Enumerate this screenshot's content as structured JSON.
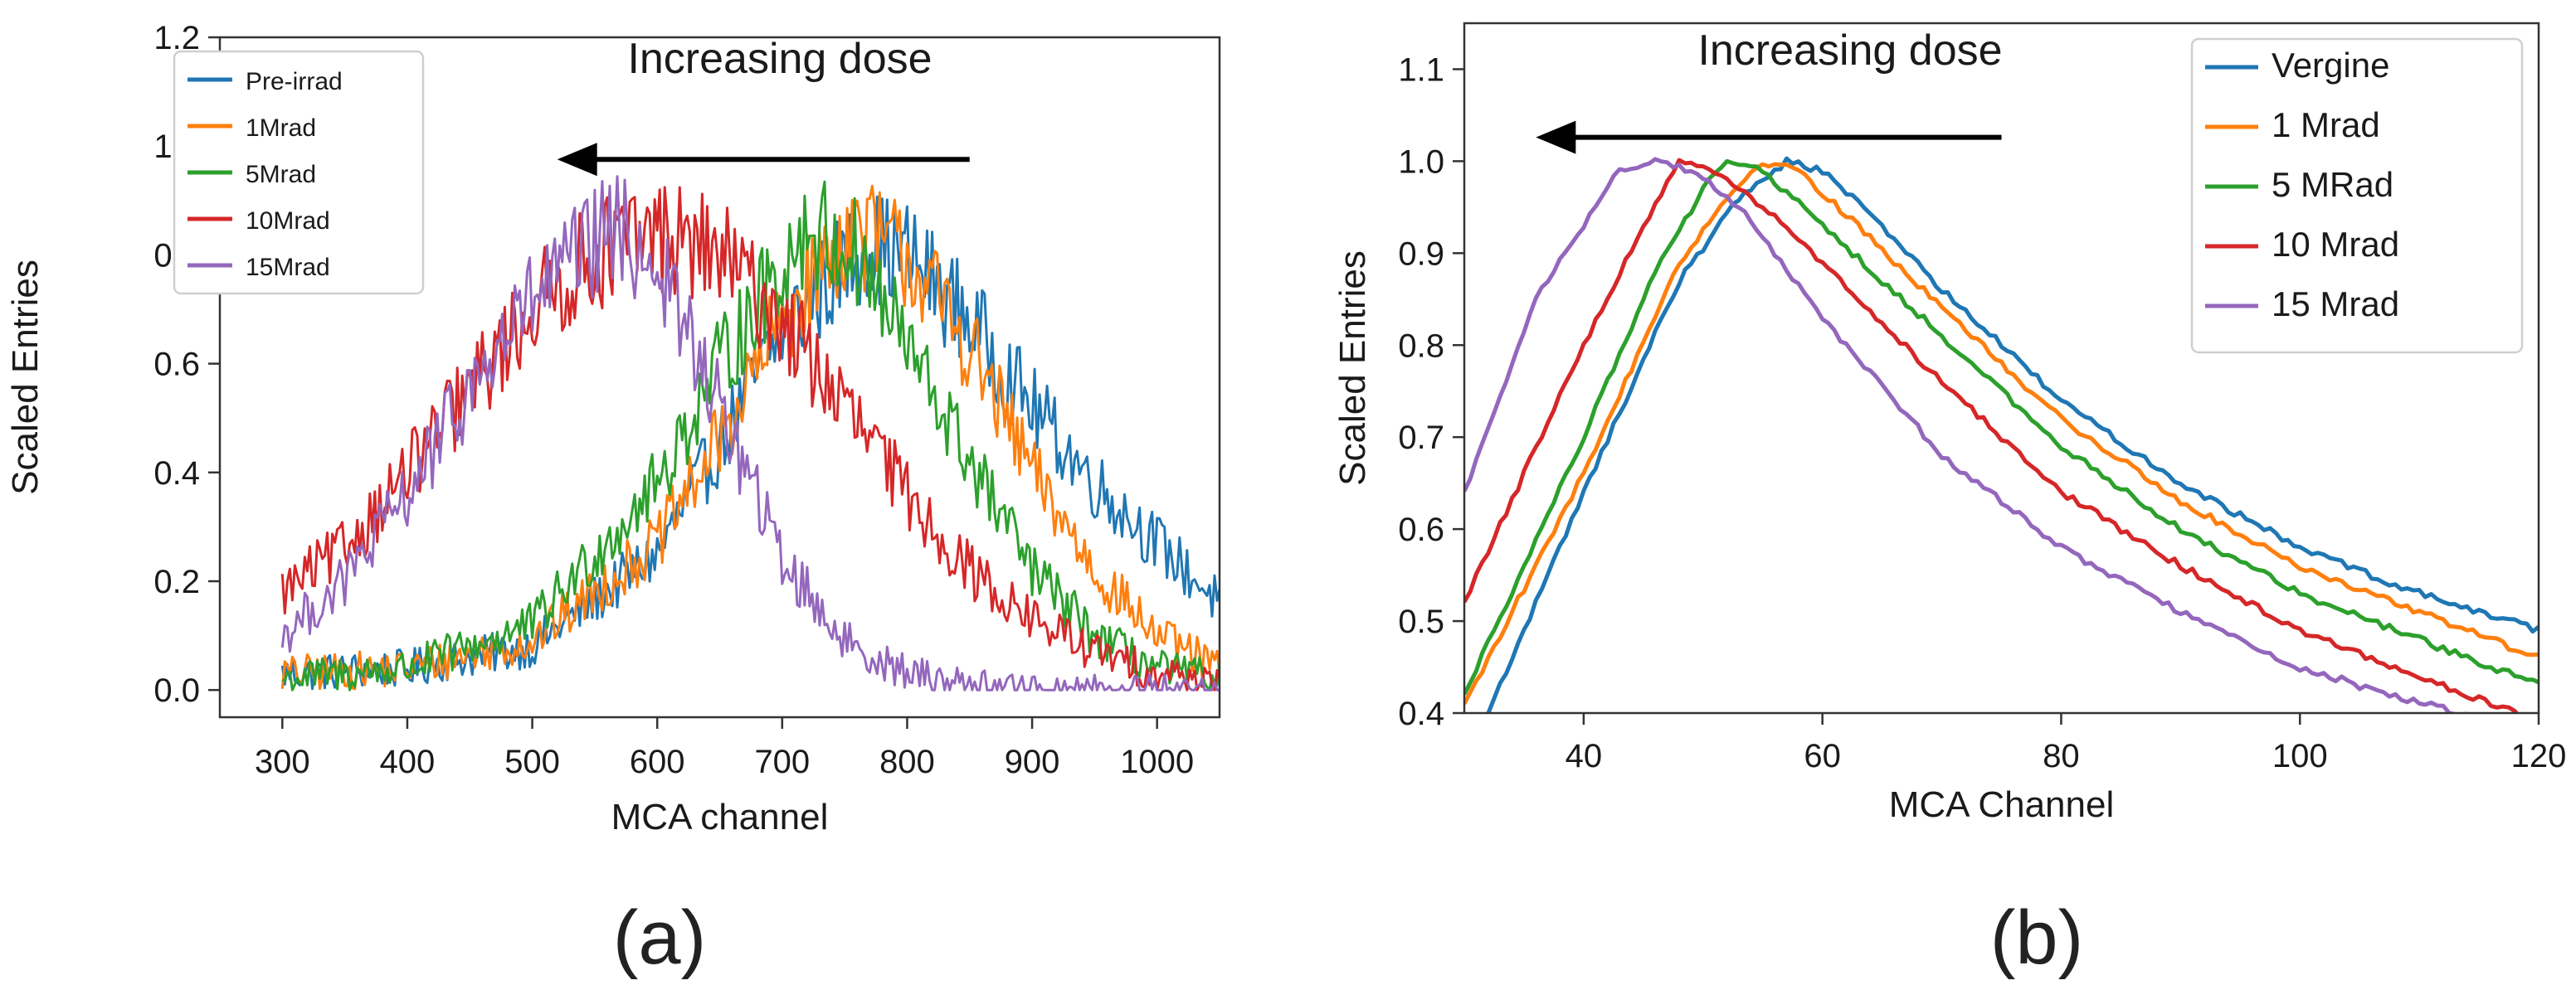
{
  "figure": {
    "panel_labels": [
      "(a)",
      "(b)"
    ]
  },
  "chart_data": [
    {
      "type": "line",
      "panel": "(a)",
      "xlabel": "MCA channel",
      "ylabel": "Scaled Entries",
      "xlim": [
        250,
        1050
      ],
      "ylim": [
        -0.05,
        1.2
      ],
      "xticks": [
        300,
        400,
        500,
        600,
        700,
        800,
        900,
        1000
      ],
      "yticks": [
        0.0,
        0.2,
        0.4,
        0.6,
        0.8,
        1.0,
        1.2
      ],
      "ytick_labels": [
        "0.0",
        "0.2",
        "0.4",
        "0.6",
        "0.8",
        "1.0",
        "1.2"
      ],
      "grid": false,
      "legend_position": "top-left",
      "annotation": {
        "text": "Increasing dose",
        "arrow_from_x": 850,
        "arrow_to_x": 520,
        "y": 1.07
      },
      "noisy": true,
      "x_range": [
        300,
        1050
      ],
      "series": [
        {
          "name": "Pre-irrad",
          "color": "#1f77b4",
          "peak_x": 765,
          "sigma_left": 130,
          "sigma_right": 210,
          "baseline": 0.03,
          "noise": 0.09,
          "points": [
            [
              300,
              0.03
            ],
            [
              400,
              0.04
            ],
            [
              500,
              0.08
            ],
            [
              600,
              0.25
            ],
            [
              650,
              0.45
            ],
            [
              700,
              0.66
            ],
            [
              765,
              0.82
            ],
            [
              800,
              0.8
            ],
            [
              850,
              0.68
            ],
            [
              900,
              0.52
            ],
            [
              950,
              0.38
            ],
            [
              1000,
              0.27
            ],
            [
              1050,
              0.16
            ]
          ]
        },
        {
          "name": "1Mrad",
          "color": "#ff7f0e",
          "peak_x": 755,
          "sigma_left": 125,
          "sigma_right": 150,
          "baseline": 0.03,
          "noise": 0.09,
          "points": [
            [
              300,
              0.03
            ],
            [
              400,
              0.04
            ],
            [
              500,
              0.09
            ],
            [
              600,
              0.27
            ],
            [
              650,
              0.46
            ],
            [
              700,
              0.68
            ],
            [
              755,
              0.85
            ],
            [
              800,
              0.8
            ],
            [
              850,
              0.63
            ],
            [
              900,
              0.4
            ],
            [
              950,
              0.22
            ],
            [
              1000,
              0.1
            ],
            [
              1050,
              0.04
            ]
          ]
        },
        {
          "name": "5Mrad",
          "color": "#2ca02c",
          "peak_x": 720,
          "sigma_left": 125,
          "sigma_right": 130,
          "baseline": 0.02,
          "noise": 0.09,
          "points": [
            [
              300,
              0.02
            ],
            [
              400,
              0.04
            ],
            [
              500,
              0.12
            ],
            [
              600,
              0.38
            ],
            [
              650,
              0.6
            ],
            [
              720,
              0.85
            ],
            [
              760,
              0.8
            ],
            [
              800,
              0.63
            ],
            [
              850,
              0.42
            ],
            [
              900,
              0.22
            ],
            [
              950,
              0.1
            ],
            [
              1000,
              0.04
            ],
            [
              1050,
              0.02
            ]
          ]
        },
        {
          "name": "10Mrad",
          "color": "#d62728",
          "peak_x": 600,
          "sigma_left": 180,
          "sigma_right": 170,
          "baseline": 0.0,
          "noise": 0.09,
          "points": [
            [
              300,
              0.18
            ],
            [
              350,
              0.26
            ],
            [
              400,
              0.4
            ],
            [
              450,
              0.55
            ],
            [
              500,
              0.7
            ],
            [
              550,
              0.8
            ],
            [
              600,
              0.84
            ],
            [
              650,
              0.8
            ],
            [
              700,
              0.68
            ],
            [
              750,
              0.52
            ],
            [
              800,
              0.36
            ],
            [
              850,
              0.22
            ],
            [
              900,
              0.13
            ],
            [
              950,
              0.07
            ],
            [
              1000,
              0.03
            ],
            [
              1050,
              0.02
            ]
          ]
        },
        {
          "name": "15Mrad",
          "color": "#9467bd",
          "peak_x": 565,
          "sigma_left": 160,
          "sigma_right": 70,
          "baseline": 0.0,
          "noise": 0.09,
          "points": [
            [
              300,
              0.1
            ],
            [
              350,
              0.2
            ],
            [
              400,
              0.36
            ],
            [
              450,
              0.55
            ],
            [
              500,
              0.72
            ],
            [
              565,
              0.85
            ],
            [
              600,
              0.78
            ],
            [
              650,
              0.52
            ],
            [
              700,
              0.24
            ],
            [
              750,
              0.09
            ],
            [
              800,
              0.03
            ],
            [
              850,
              0.01
            ],
            [
              900,
              0.0
            ],
            [
              1050,
              0.0
            ]
          ]
        }
      ]
    },
    {
      "type": "line",
      "panel": "(b)",
      "xlabel": "MCA Channel",
      "ylabel": "Scaled Entries",
      "xlim": [
        30,
        120
      ],
      "ylim": [
        0.4,
        1.15
      ],
      "xticks": [
        40,
        60,
        80,
        100,
        120
      ],
      "yticks": [
        0.4,
        0.5,
        0.6,
        0.7,
        0.8,
        0.9,
        1.0,
        1.1
      ],
      "ytick_labels": [
        "0.4",
        "0.5",
        "0.6",
        "0.7",
        "0.8",
        "0.9",
        "1.0",
        "1.1"
      ],
      "grid": false,
      "legend_position": "top-right",
      "annotation": {
        "text": "Increasing dose",
        "arrow_from_x": 75,
        "arrow_to_x": 36,
        "y": 1.08
      },
      "noisy": false,
      "series": [
        {
          "name": "Vergine",
          "color": "#1f77b4",
          "points": [
            [
              32,
              0.4
            ],
            [
              40,
              0.64
            ],
            [
              48,
              0.87
            ],
            [
              53,
              0.96
            ],
            [
              57,
              1.0
            ],
            [
              60,
              0.99
            ],
            [
              65,
              0.93
            ],
            [
              70,
              0.86
            ],
            [
              80,
              0.74
            ],
            [
              90,
              0.65
            ],
            [
              100,
              0.58
            ],
            [
              110,
              0.53
            ],
            [
              120,
              0.49
            ]
          ]
        },
        {
          "name": "1 Mrad",
          "color": "#ff7f0e",
          "points": [
            [
              30,
              0.41
            ],
            [
              40,
              0.66
            ],
            [
              48,
              0.89
            ],
            [
              52,
              0.96
            ],
            [
              55,
              1.0
            ],
            [
              58,
              0.99
            ],
            [
              63,
              0.93
            ],
            [
              70,
              0.84
            ],
            [
              80,
              0.72
            ],
            [
              90,
              0.63
            ],
            [
              100,
              0.56
            ],
            [
              110,
              0.51
            ],
            [
              120,
              0.46
            ]
          ]
        },
        {
          "name": "5 MRad",
          "color": "#2ca02c",
          "points": [
            [
              30,
              0.42
            ],
            [
              40,
              0.7
            ],
            [
              46,
              0.88
            ],
            [
              50,
              0.97
            ],
            [
              52,
              1.0
            ],
            [
              55,
              0.99
            ],
            [
              60,
              0.93
            ],
            [
              70,
              0.81
            ],
            [
              80,
              0.69
            ],
            [
              90,
              0.6
            ],
            [
              100,
              0.53
            ],
            [
              110,
              0.48
            ],
            [
              120,
              0.43
            ]
          ]
        },
        {
          "name": "10 Mrad",
          "color": "#d62728",
          "points": [
            [
              30,
              0.52
            ],
            [
              40,
              0.8
            ],
            [
              45,
              0.93
            ],
            [
              48,
              1.0
            ],
            [
              51,
              0.99
            ],
            [
              56,
              0.94
            ],
            [
              60,
              0.89
            ],
            [
              70,
              0.76
            ],
            [
              80,
              0.64
            ],
            [
              90,
              0.56
            ],
            [
              100,
              0.49
            ],
            [
              110,
              0.44
            ],
            [
              120,
              0.39
            ]
          ]
        },
        {
          "name": "15 Mrad",
          "color": "#9467bd",
          "points": [
            [
              30,
              0.64
            ],
            [
              36,
              0.85
            ],
            [
              40,
              0.93
            ],
            [
              43,
              0.99
            ],
            [
              46,
              1.0
            ],
            [
              49,
              0.99
            ],
            [
              53,
              0.95
            ],
            [
              60,
              0.83
            ],
            [
              70,
              0.68
            ],
            [
              80,
              0.58
            ],
            [
              90,
              0.51
            ],
            [
              100,
              0.45
            ],
            [
              110,
              0.41
            ],
            [
              114,
              0.4
            ]
          ]
        }
      ]
    }
  ]
}
